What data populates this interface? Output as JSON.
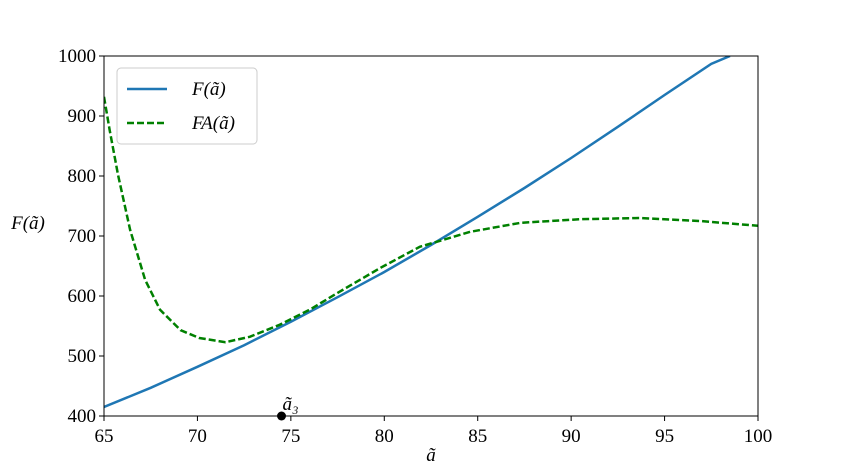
{
  "chart_data": {
    "type": "line",
    "xlabel": "ã",
    "ylabel": "F(ã)",
    "xlim": [
      65,
      100
    ],
    "ylim": [
      400,
      1000
    ],
    "xticks": [
      65,
      70,
      75,
      80,
      85,
      90,
      95,
      100
    ],
    "yticks": [
      400,
      500,
      600,
      700,
      800,
      900,
      1000
    ],
    "legend": "upper left",
    "series": [
      {
        "name": "F(ã)",
        "color": "#1f77b4",
        "linestyle": "solid",
        "x": [
          65,
          67.5,
          70,
          72.5,
          75,
          77.5,
          80,
          82.5,
          85,
          87.5,
          90,
          92.5,
          95,
          97.5,
          98.5
        ],
        "values": [
          415,
          447,
          482,
          518,
          557,
          598,
          640,
          685,
          732,
          780,
          830,
          882,
          935,
          987,
          1000
        ]
      },
      {
        "name": "FA(ã)",
        "color": "#008000",
        "linestyle": "dashed",
        "x": [
          65,
          65.3,
          65.75,
          66.4,
          67.2,
          68,
          69.1,
          70.1,
          71.5,
          72.8,
          74.4,
          76,
          77.6,
          79.8,
          81.9,
          84.6,
          87.3,
          90.5,
          93.7,
          96.9,
          100
        ],
        "values": [
          932,
          877,
          802,
          710,
          627,
          577,
          543,
          530,
          523,
          532,
          552,
          577,
          607,
          647,
          682,
          707,
          722,
          728,
          730,
          725,
          717
        ]
      }
    ],
    "points": [
      {
        "x": 74.5,
        "y": 400,
        "label": "ã₃",
        "color": "#000000"
      }
    ]
  }
}
